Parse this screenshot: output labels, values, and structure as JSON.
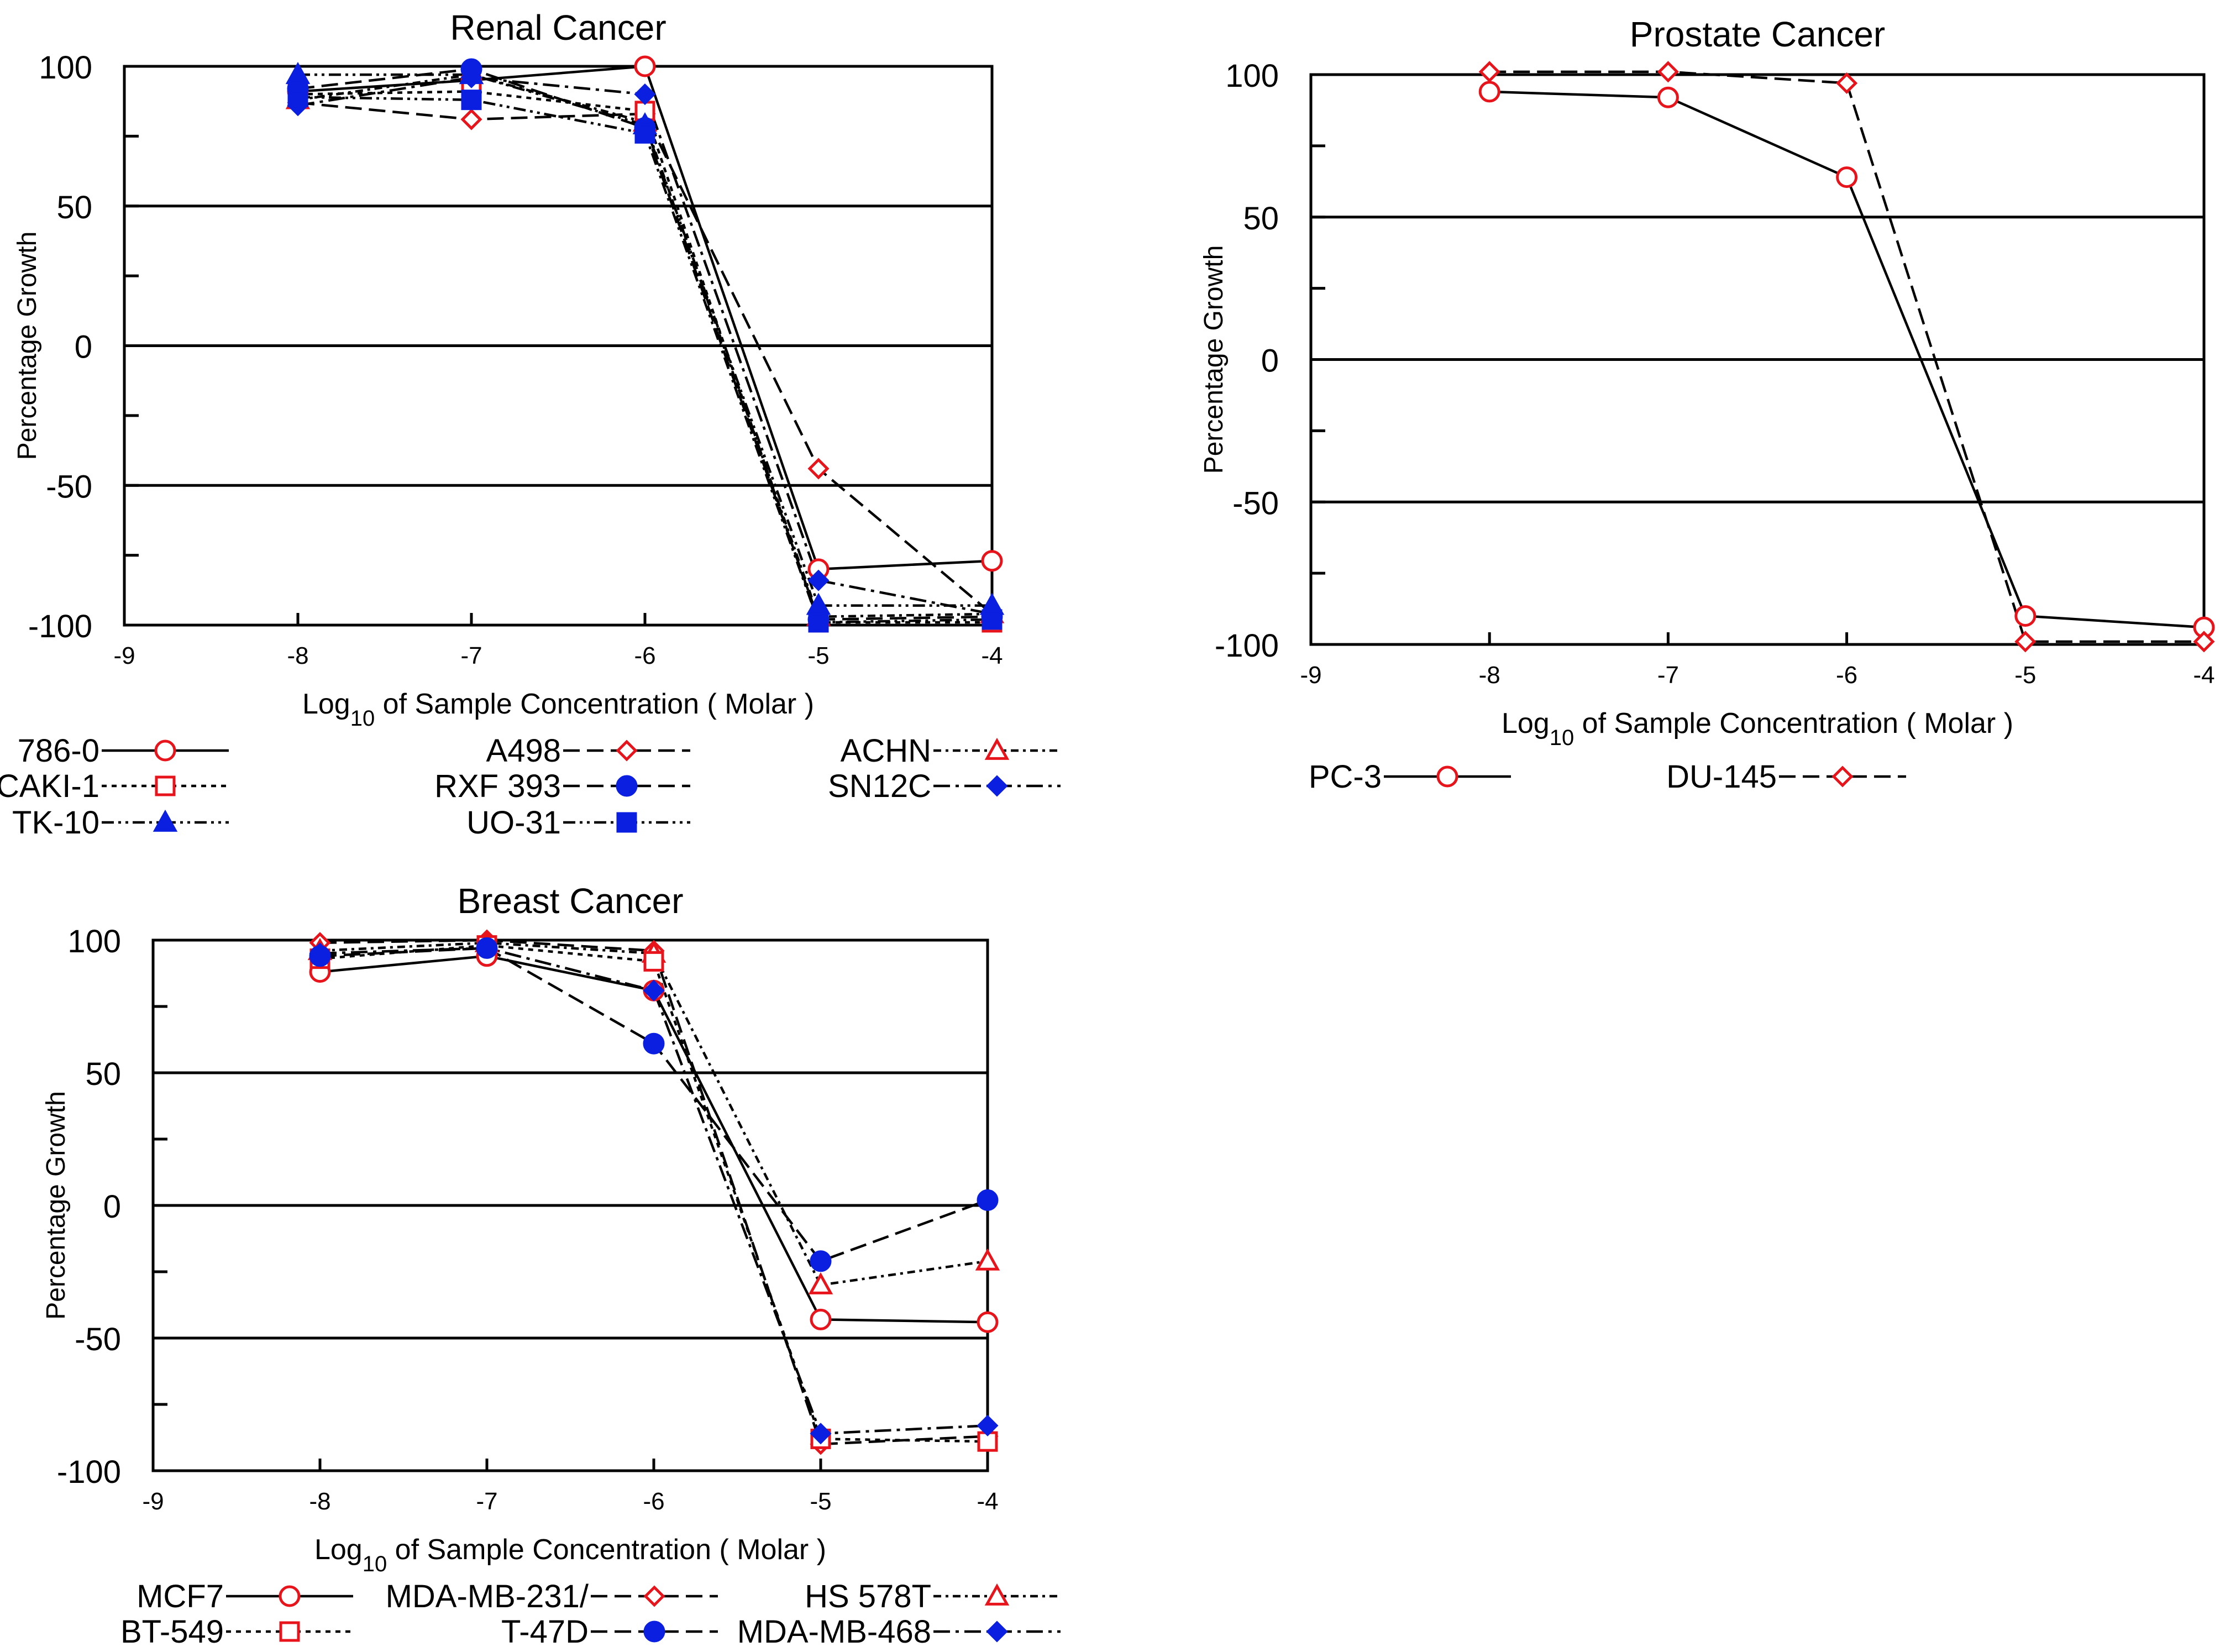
{
  "chart_data": [
    {
      "type": "line",
      "title": "Renal Cancer",
      "xlabel_prefix": "Log",
      "xlabel_sub": "10",
      "xlabel_suffix": " of Sample Concentration ( Molar )",
      "ylabel": "Percentage Growth",
      "xlim": [
        -9,
        -4
      ],
      "ylim": [
        -100,
        100
      ],
      "x": [
        -8,
        -7,
        -6,
        -5,
        -4
      ],
      "xticks": [
        "-9",
        "-8",
        "-7",
        "-6",
        "-5",
        "-4"
      ],
      "yticks": [
        "100",
        "50",
        "0",
        "-50",
        "-100"
      ],
      "series": [
        {
          "name": "786-0",
          "dash": "solid",
          "marker": "circle-open",
          "color": "#e8141b",
          "values": [
            91,
            95,
            100,
            -80,
            -77
          ]
        },
        {
          "name": "A498",
          "dash": "dash",
          "marker": "diamond-open",
          "color": "#e8141b",
          "values": [
            87,
            81,
            83,
            -44,
            -96
          ]
        },
        {
          "name": "ACHN",
          "dash": "dash-dot-small",
          "marker": "triangle-open",
          "color": "#e8141b",
          "values": [
            88,
            97,
            80,
            -97,
            -96
          ]
        },
        {
          "name": "CAKI-1",
          "dash": "dotted",
          "marker": "square-open",
          "color": "#e8141b",
          "values": [
            90,
            91,
            84,
            -99,
            -99
          ]
        },
        {
          "name": "RXF 393",
          "dash": "dash",
          "marker": "circle-filled",
          "color": "#0a1fe0",
          "values": [
            92,
            99,
            78,
            -98,
            -97
          ]
        },
        {
          "name": "SN12C",
          "dash": "dash-dot",
          "marker": "diamond-filled",
          "color": "#0a1fe0",
          "values": [
            86,
            96,
            90,
            -84,
            -96
          ]
        },
        {
          "name": "TK-10",
          "dash": "dash-dot-dot",
          "marker": "triangle-filled",
          "color": "#0a1fe0",
          "values": [
            97,
            97,
            79,
            -93,
            -93
          ]
        },
        {
          "name": "UO-31",
          "dash": "dash-dot-dot",
          "marker": "square-filled",
          "color": "#0a1fe0",
          "values": [
            89,
            88,
            76,
            -99,
            -98
          ]
        }
      ]
    },
    {
      "type": "line",
      "title": "Prostate Cancer",
      "xlabel_prefix": "Log",
      "xlabel_sub": "10",
      "xlabel_suffix": " of Sample Concentration ( Molar )",
      "ylabel": "Percentage Growth",
      "xlim": [
        -9,
        -4
      ],
      "ylim": [
        -100,
        100
      ],
      "x": [
        -8,
        -7,
        -6,
        -5,
        -4
      ],
      "xticks": [
        "-9",
        "-8",
        "-7",
        "-6",
        "-5",
        "-4"
      ],
      "yticks": [
        "100",
        "50",
        "0",
        "-50",
        "-100"
      ],
      "series": [
        {
          "name": "PC-3",
          "dash": "solid",
          "marker": "circle-open",
          "color": "#e8141b",
          "values": [
            94,
            92,
            64,
            -90,
            -94
          ]
        },
        {
          "name": "DU-145",
          "dash": "dash",
          "marker": "diamond-open",
          "color": "#e8141b",
          "values": [
            101,
            101,
            97,
            -99,
            -99
          ]
        }
      ]
    },
    {
      "type": "line",
      "title": "Breast Cancer",
      "xlabel_prefix": "Log",
      "xlabel_sub": "10",
      "xlabel_suffix": " of Sample Concentration ( Molar )",
      "ylabel": "Percentage Growth",
      "xlim": [
        -9,
        -4
      ],
      "ylim": [
        -100,
        100
      ],
      "x": [
        -8,
        -7,
        -6,
        -5,
        -4
      ],
      "xticks": [
        "-9",
        "-8",
        "-7",
        "-6",
        "-5",
        "-4"
      ],
      "yticks": [
        "100",
        "50",
        "0",
        "-50",
        "-100"
      ],
      "series": [
        {
          "name": "MCF7",
          "dash": "solid",
          "marker": "circle-open",
          "color": "#e8141b",
          "values": [
            88,
            94,
            81,
            -43,
            -44
          ]
        },
        {
          "name": "MDA-MB-231/",
          "dash": "dash",
          "marker": "diamond-open",
          "color": "#e8141b",
          "values": [
            99,
            100,
            96,
            -90,
            -87
          ]
        },
        {
          "name": "HS 578T",
          "dash": "dash-dot-small",
          "marker": "triangle-open",
          "color": "#e8141b",
          "values": [
            96,
            99,
            95,
            -30,
            -21
          ]
        },
        {
          "name": "BT-549",
          "dash": "dotted",
          "marker": "square-open",
          "color": "#e8141b",
          "values": [
            93,
            98,
            92,
            -88,
            -89
          ]
        },
        {
          "name": "T-47D",
          "dash": "dash",
          "marker": "circle-filled",
          "color": "#0a1fe0",
          "values": [
            94,
            97,
            61,
            -21,
            2
          ]
        },
        {
          "name": "MDA-MB-468",
          "dash": "dash-dot",
          "marker": "diamond-filled",
          "color": "#0a1fe0",
          "values": [
            95,
            97,
            81,
            -86,
            -83
          ]
        }
      ]
    }
  ]
}
